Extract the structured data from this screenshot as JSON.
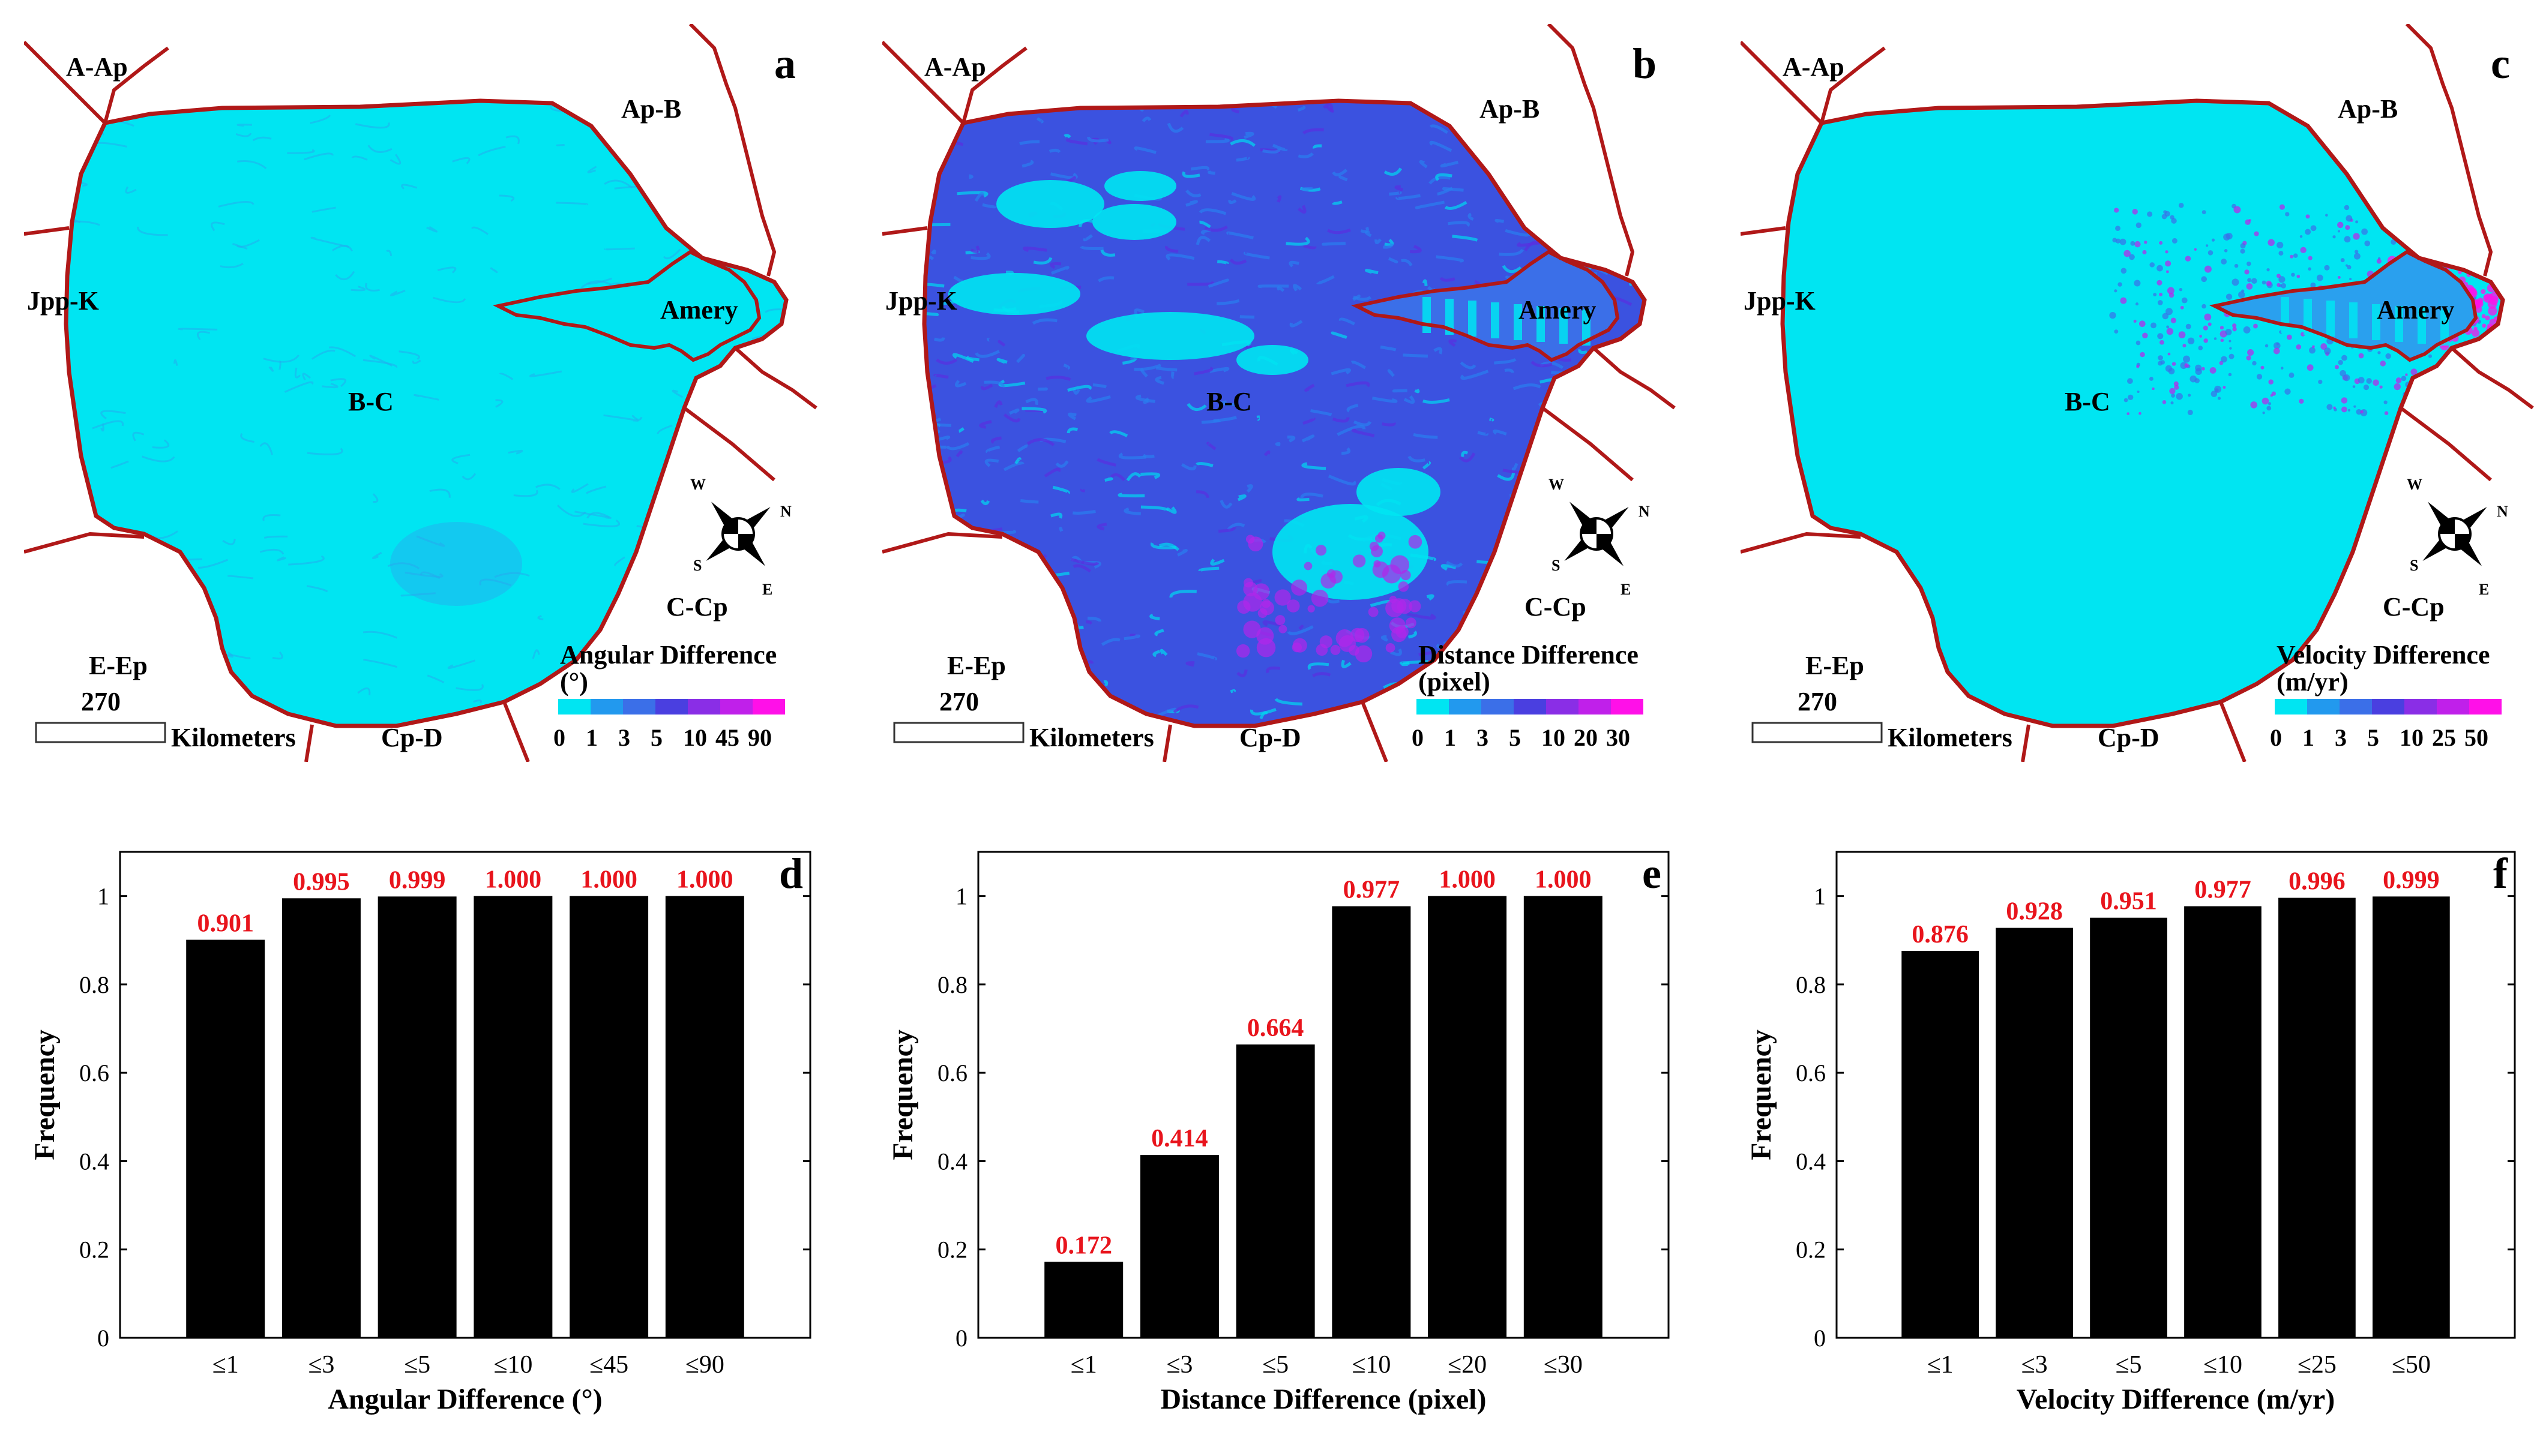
{
  "maps": [
    {
      "id": "a",
      "letter": "a",
      "regions": {
        "aap": "A-Ap",
        "apb": "Ap-B",
        "jppk": "Jpp-K",
        "amery": "Amery",
        "bc": "B-C",
        "ccp": "C-Cp",
        "eep": "E-Ep",
        "cpd": "Cp-D"
      },
      "scale_value": "270",
      "scale_unit": "Kilometers",
      "legend_title": [
        "Angular Difference",
        "(°)"
      ],
      "legend_ticks": [
        "0",
        "1",
        "3",
        "5",
        "10",
        "45",
        "90"
      ],
      "legend_colors": [
        "#00e5f2",
        "#2299ee",
        "#3b6fe8",
        "#4a3fe0",
        "#8a2ee6",
        "#c020ea",
        "#ff10e8"
      ],
      "compass": {
        "w": "W",
        "n": "N",
        "s": "S",
        "e": "E"
      }
    },
    {
      "id": "b",
      "letter": "b",
      "regions": {
        "aap": "A-Ap",
        "apb": "Ap-B",
        "jppk": "Jpp-K",
        "amery": "Amery",
        "bc": "B-C",
        "ccp": "C-Cp",
        "eep": "E-Ep",
        "cpd": "Cp-D"
      },
      "scale_value": "270",
      "scale_unit": "Kilometers",
      "legend_title": [
        "Distance Difference",
        "(pixel)"
      ],
      "legend_ticks": [
        "0",
        "1",
        "3",
        "5",
        "10",
        "20",
        "30"
      ],
      "legend_colors": [
        "#00e5f2",
        "#2299ee",
        "#3b6fe8",
        "#4a3fe0",
        "#8a2ee6",
        "#c020ea",
        "#ff10e8"
      ],
      "compass": {
        "w": "W",
        "n": "N",
        "s": "S",
        "e": "E"
      }
    },
    {
      "id": "c",
      "letter": "c",
      "regions": {
        "aap": "A-Ap",
        "apb": "Ap-B",
        "jppk": "Jpp-K",
        "amery": "Amery",
        "bc": "B-C",
        "ccp": "C-Cp",
        "eep": "E-Ep",
        "cpd": "Cp-D"
      },
      "scale_value": "270",
      "scale_unit": "Kilometers",
      "legend_title": [
        "Velocity Difference",
        "(m/yr)"
      ],
      "legend_ticks": [
        "0",
        "1",
        "3",
        "5",
        "10",
        "25",
        "50"
      ],
      "legend_colors": [
        "#00e5f2",
        "#2299ee",
        "#3b6fe8",
        "#4a3fe0",
        "#8a2ee6",
        "#c020ea",
        "#ff10e8"
      ],
      "compass": {
        "w": "W",
        "n": "N",
        "s": "S",
        "e": "E"
      }
    }
  ],
  "chart_data": [
    {
      "type": "bar",
      "letter": "d",
      "categories": [
        "≤1",
        "≤3",
        "≤5",
        "≤10",
        "≤45",
        "≤90"
      ],
      "values": [
        0.901,
        0.995,
        0.999,
        1.0,
        1.0,
        1.0
      ],
      "value_labels": [
        "0.901",
        "0.995",
        "0.999",
        "1.000",
        "1.000",
        "1.000"
      ],
      "xlabel": "Angular Difference (°)",
      "ylabel": "Frequency",
      "ylim": [
        0,
        1.1
      ],
      "yticks": [
        0,
        0.2,
        0.4,
        0.6,
        0.8,
        1
      ],
      "ytick_labels": [
        "0",
        "0.2",
        "0.4",
        "0.6",
        "0.8",
        "1"
      ],
      "bar_color": "#000000",
      "label_color": "#e8141c"
    },
    {
      "type": "bar",
      "letter": "e",
      "categories": [
        "≤1",
        "≤3",
        "≤5",
        "≤10",
        "≤20",
        "≤30"
      ],
      "values": [
        0.172,
        0.414,
        0.664,
        0.977,
        1.0,
        1.0
      ],
      "value_labels": [
        "0.172",
        "0.414",
        "0.664",
        "0.977",
        "1.000",
        "1.000"
      ],
      "xlabel": "Distance Difference (pixel)",
      "ylabel": "Frequency",
      "ylim": [
        0,
        1.1
      ],
      "yticks": [
        0,
        0.2,
        0.4,
        0.6,
        0.8,
        1
      ],
      "ytick_labels": [
        "0",
        "0.2",
        "0.4",
        "0.6",
        "0.8",
        "1"
      ],
      "bar_color": "#000000",
      "label_color": "#e8141c"
    },
    {
      "type": "bar",
      "letter": "f",
      "categories": [
        "≤1",
        "≤3",
        "≤5",
        "≤10",
        "≤25",
        "≤50"
      ],
      "values": [
        0.876,
        0.928,
        0.951,
        0.977,
        0.996,
        0.999
      ],
      "value_labels": [
        "0.876",
        "0.928",
        "0.951",
        "0.977",
        "0.996",
        "0.999"
      ],
      "xlabel": "Velocity Difference (m/yr)",
      "ylabel": "Frequency",
      "ylim": [
        0,
        1.1
      ],
      "yticks": [
        0,
        0.2,
        0.4,
        0.6,
        0.8,
        1
      ],
      "ytick_labels": [
        "0",
        "0.2",
        "0.4",
        "0.6",
        "0.8",
        "1"
      ],
      "bar_color": "#000000",
      "label_color": "#e8141c"
    }
  ]
}
